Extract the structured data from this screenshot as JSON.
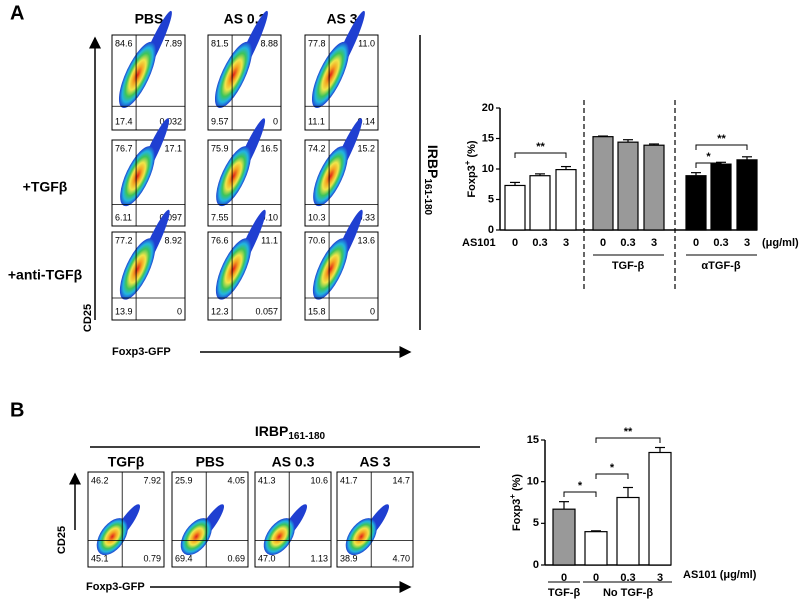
{
  "panel_a": {
    "label": "A",
    "columns": [
      "PBS",
      "AS 0.3",
      "AS 3"
    ],
    "row_labels": [
      "+TGFβ",
      "+anti-TGFβ"
    ],
    "y_axis_label": "CD25",
    "x_axis_label": "Foxp3-GFP",
    "side_label": "IRBP",
    "side_label_sub": "161-180",
    "plots": [
      [
        [
          "84.6",
          "7.89",
          "17.4",
          "0.032"
        ],
        [
          "81.5",
          "8.88",
          "9.57",
          "0"
        ],
        [
          "77.8",
          "11.0",
          "11.1",
          "0.14"
        ]
      ],
      [
        [
          "76.7",
          "17.1",
          "6.11",
          "0.097"
        ],
        [
          "75.9",
          "16.5",
          "7.55",
          "0.10"
        ],
        [
          "74.2",
          "15.2",
          "10.3",
          "0.33"
        ]
      ],
      [
        [
          "77.2",
          "8.92",
          "13.9",
          "0"
        ],
        [
          "76.6",
          "11.1",
          "12.3",
          "0.057"
        ],
        [
          "70.6",
          "13.6",
          "15.8",
          "0"
        ]
      ]
    ]
  },
  "panel_b": {
    "label": "B",
    "top_label": "IRBP",
    "top_label_sub": "161-180",
    "columns": [
      "TGFβ",
      "PBS",
      "AS 0.3",
      "AS 3"
    ],
    "y_axis_label": "CD25",
    "x_axis_label": "Foxp3-GFP",
    "plots": [
      [
        "46.2",
        "7.92",
        "45.1",
        "0.79"
      ],
      [
        "25.9",
        "4.05",
        "69.4",
        "0.69"
      ],
      [
        "41.3",
        "10.6",
        "47.0",
        "1.13"
      ],
      [
        "41.7",
        "14.7",
        "38.9",
        "4.70"
      ]
    ]
  },
  "chart_data": [
    {
      "type": "bar",
      "y_label": "Foxp3",
      "y_label_sup": "+",
      "y_label_unit": "(%)",
      "categories": [
        "0",
        "0.3",
        "3",
        "0",
        "0.3",
        "3",
        "0",
        "0.3",
        "3"
      ],
      "values": [
        7.3,
        8.9,
        9.9,
        15.3,
        14.4,
        13.9,
        8.9,
        10.8,
        11.5
      ],
      "errors": [
        0.5,
        0.3,
        0.5,
        0.1,
        0.4,
        0.2,
        0.5,
        0.3,
        0.5
      ],
      "colors": [
        "#ffffff",
        "#ffffff",
        "#ffffff",
        "#999999",
        "#999999",
        "#999999",
        "#000000",
        "#000000",
        "#000000"
      ],
      "x_label": "AS101",
      "unit": "(μg/ml)",
      "group_labels": [
        "TGF-β",
        "αTGF-β"
      ],
      "annotations": [
        "**",
        "*",
        "**"
      ],
      "ylim": [
        0,
        20
      ],
      "yticks": [
        0,
        5,
        10,
        15,
        20
      ]
    },
    {
      "type": "bar",
      "y_label": "Foxp3",
      "y_label_sup": "+",
      "y_label_unit": "(%)",
      "categories": [
        "0",
        "0",
        "0.3",
        "3"
      ],
      "values": [
        6.7,
        4.0,
        8.1,
        13.5
      ],
      "errors": [
        0.9,
        0.1,
        1.2,
        0.6
      ],
      "colors": [
        "#999999",
        "#ffffff",
        "#ffffff",
        "#ffffff"
      ],
      "x_label": "AS101 (μg/ml)",
      "group_labels": [
        "TGF-β",
        "No TGF-β"
      ],
      "annotations": [
        "*",
        "*",
        "**"
      ],
      "ylim": [
        0,
        15
      ],
      "yticks": [
        0,
        5,
        10,
        15
      ]
    }
  ]
}
